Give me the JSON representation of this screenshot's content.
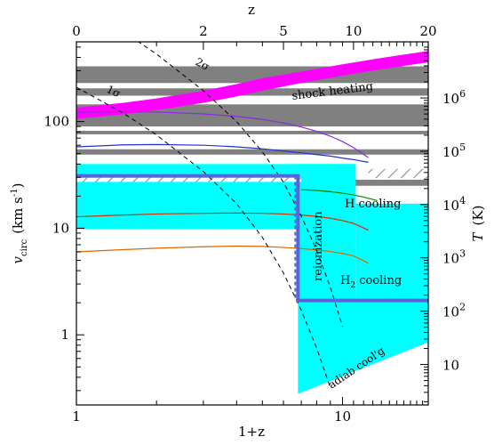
{
  "chart_data": {
    "type": "line",
    "x_axis": {
      "label": "1+z",
      "scale": "log",
      "range": [
        1,
        21
      ],
      "tick_labels": [
        {
          "value": 1,
          "label": "1"
        },
        {
          "value": 10,
          "label": "10"
        }
      ]
    },
    "top_axis": {
      "label": "z",
      "tick_labels": [
        {
          "value": 0,
          "label": "0"
        },
        {
          "value": 2,
          "label": "2"
        },
        {
          "value": 5,
          "label": "5"
        },
        {
          "value": 10,
          "label": "10"
        },
        {
          "value": 20,
          "label": "20"
        }
      ]
    },
    "y_axis": {
      "label": "v",
      "label_sub": "circ",
      "label_units": "(km s",
      "label_sup": "-1",
      "label_close": ")",
      "scale": "log",
      "range": [
        0.22,
        560
      ],
      "tick_labels": [
        {
          "value": 1,
          "label": "1"
        },
        {
          "value": 10,
          "label": "10"
        },
        {
          "value": 100,
          "label": "100"
        }
      ]
    },
    "right_axis": {
      "label": "T",
      "label_units": "(K)",
      "tick_labels": [
        {
          "value": 10,
          "mantissa": "10",
          "exp": ""
        },
        {
          "value": 100,
          "mantissa": "10",
          "exp": "2"
        },
        {
          "value": 1000,
          "mantissa": "10",
          "exp": "3"
        },
        {
          "value": 10000,
          "mantissa": "10",
          "exp": "4"
        },
        {
          "value": 100000,
          "mantissa": "10",
          "exp": "5"
        },
        {
          "value": 1000000,
          "mantissa": "10",
          "exp": "6"
        }
      ]
    },
    "annotations": {
      "shock_heating": "shock heating",
      "h_cooling": "H cooling",
      "h2_cooling_main": "H",
      "h2_cooling_sub": "2",
      "h2_cooling_rest": " cooling",
      "reionization": "reionization",
      "adiab": "adiab cool'g",
      "sigma1": "1σ",
      "sigma2": "2σ"
    },
    "gray_bands_vcirc": [
      [
        230,
        330
      ],
      [
        175,
        205
      ],
      [
        90,
        145
      ],
      [
        76,
        82
      ],
      [
        49,
        55
      ],
      [
        25,
        28.5
      ]
    ],
    "shock_heating_band": {
      "x": [
        1,
        1.5,
        2,
        3,
        4,
        5,
        7,
        10,
        14,
        21
      ],
      "upper": [
        135,
        150,
        165,
        195,
        225,
        255,
        295,
        345,
        395,
        460
      ],
      "lower": [
        106,
        117,
        128,
        150,
        172,
        195,
        230,
        270,
        310,
        360
      ]
    },
    "series": [
      {
        "color": "#8a2be2",
        "x": [
          1,
          1.5,
          2,
          3,
          4,
          5,
          6,
          7,
          8,
          9,
          10,
          11,
          12.5
        ],
        "values": [
          122,
          124,
          123,
          118,
          112,
          105,
          97,
          89,
          81,
          73,
          65,
          57,
          46
        ]
      },
      {
        "color": "#2233cc",
        "x": [
          1,
          1.5,
          2,
          3,
          4,
          5,
          6,
          7,
          8,
          9,
          10,
          11,
          12.5
        ],
        "values": [
          58,
          60.5,
          61,
          60,
          58,
          55.5,
          53,
          51,
          49,
          47.5,
          45.5,
          44,
          41.5
        ]
      },
      {
        "color": "#008800",
        "x": [
          7,
          8,
          9,
          10,
          11,
          12,
          13.5
        ],
        "values": [
          23,
          22.6,
          22,
          21.3,
          20.5,
          19.6,
          18.2
        ]
      },
      {
        "color": "#cc3300",
        "x": [
          1,
          1.5,
          2,
          3,
          4,
          5,
          6,
          7,
          8,
          9,
          10,
          11,
          12.5
        ],
        "values": [
          12.8,
          13.3,
          13.6,
          13.8,
          13.9,
          13.8,
          13.6,
          13.3,
          12.9,
          12.4,
          11.8,
          11.1,
          9.6
        ]
      },
      {
        "color": "#dd6600",
        "x": [
          1,
          1.5,
          2,
          3,
          4,
          5,
          6,
          7,
          8,
          9,
          10,
          11,
          12.5
        ],
        "values": [
          6.0,
          6.3,
          6.5,
          6.7,
          6.8,
          6.75,
          6.6,
          6.45,
          6.25,
          6.05,
          5.8,
          5.5,
          4.7
        ]
      }
    ],
    "sigma_curves": [
      {
        "name_key": "sigma1",
        "x": [
          1,
          1.5,
          2,
          3,
          4,
          5,
          6,
          7,
          8,
          9
        ],
        "values": [
          210,
          120,
          75,
          34,
          17,
          8.2,
          3.8,
          1.7,
          0.75,
          0.32
        ]
      },
      {
        "name_key": "sigma2",
        "x": [
          1,
          1.5,
          2,
          3,
          4,
          5,
          6,
          7,
          8,
          9,
          10
        ],
        "values": [
          1300,
          700,
          430,
          195,
          100,
          52,
          27,
          13,
          6.2,
          2.8,
          1.2
        ]
      }
    ],
    "cyan_regions": [
      {
        "x": [
          1,
          11.2
        ],
        "y": [
          9.8,
          40
        ]
      },
      {
        "x": [
          6.8,
          11.2
        ],
        "y": [
          2.1,
          40
        ]
      },
      {
        "x": [
          11.2,
          21
        ],
        "y": [
          2.1,
          17
        ]
      },
      {
        "x": [
          6.8,
          21
        ],
        "y": [
          0.28,
          2.1
        ],
        "wedge_top_left": 0.28,
        "wedge_top_right": 0.85
      }
    ],
    "hatch_regions": [
      {
        "x": [
          1,
          7
        ],
        "y": [
          27.2,
          29.8
        ]
      },
      {
        "x": [
          12.5,
          21
        ],
        "y": [
          29.5,
          36
        ]
      }
    ],
    "reionization_step": {
      "left_x": 1,
      "right_x": 21,
      "step_x": 6.8,
      "upper_level": 31,
      "lower_level": 2.1
    },
    "colors": {
      "gray": "#808080",
      "cyan": "#00ffff",
      "magenta": "#ff00ff",
      "reionization": "#5566dd",
      "hatch": "#999999"
    }
  }
}
